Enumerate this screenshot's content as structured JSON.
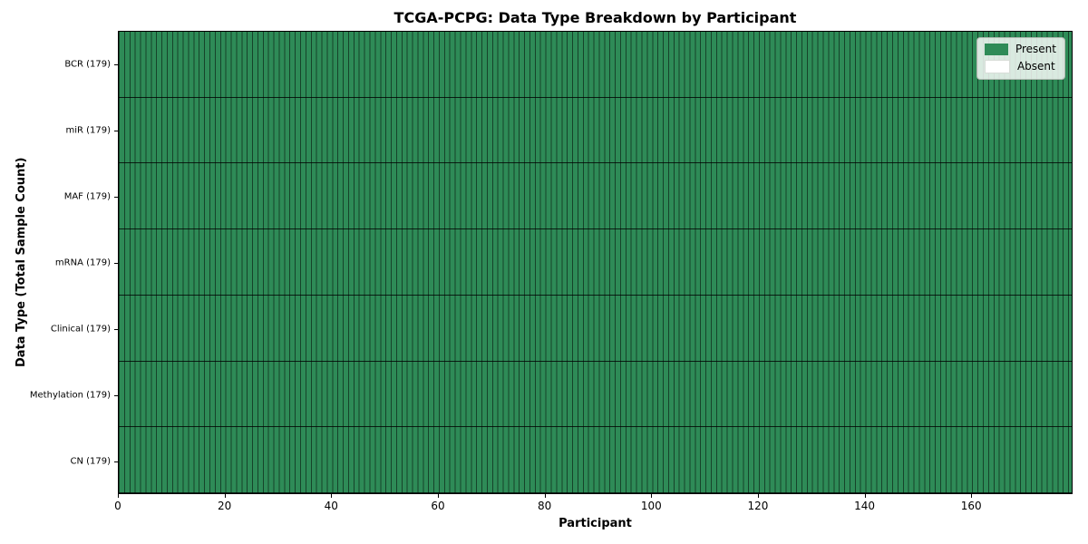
{
  "chart_data": {
    "type": "heatmap",
    "title": "TCGA-PCPG: Data Type Breakdown by Participant",
    "xlabel": "Participant",
    "ylabel": "Data Type (Total Sample Count)",
    "n_participants": 179,
    "x_range": [
      0,
      179
    ],
    "x_ticks": [
      0,
      20,
      40,
      60,
      80,
      100,
      120,
      140,
      160
    ],
    "rows": [
      {
        "label": "BCR (179)",
        "data_type": "BCR",
        "total_samples": 179,
        "present_count": 179,
        "absent_count": 0
      },
      {
        "label": "miR (179)",
        "data_type": "miR",
        "total_samples": 179,
        "present_count": 179,
        "absent_count": 0
      },
      {
        "label": "MAF (179)",
        "data_type": "MAF",
        "total_samples": 179,
        "present_count": 179,
        "absent_count": 0
      },
      {
        "label": "mRNA (179)",
        "data_type": "mRNA",
        "total_samples": 179,
        "present_count": 179,
        "absent_count": 0
      },
      {
        "label": "Clinical (179)",
        "data_type": "Clinical",
        "total_samples": 179,
        "present_count": 179,
        "absent_count": 0
      },
      {
        "label": "Methylation (179)",
        "data_type": "Methylation",
        "total_samples": 179,
        "present_count": 179,
        "absent_count": 0
      },
      {
        "label": "CN (179)",
        "data_type": "CN",
        "total_samples": 179,
        "present_count": 179,
        "absent_count": 0
      }
    ],
    "cells": "every cell Present: all 179 participants have all 7 data types",
    "legend": {
      "position": "upper right",
      "entries": [
        {
          "label": "Present",
          "color": "#2e8b57"
        },
        {
          "label": "Absent",
          "color": "#ffffff"
        }
      ]
    },
    "colors": {
      "present": "#2e8b57",
      "absent": "#ffffff",
      "cell_edge": "rgba(0,0,0,0.52)",
      "row_divider": "rgba(0,0,0,0.78)",
      "axes_edge": "#000000"
    },
    "grid": "cell edges visible (179 vertical lines, 6 horizontal row dividers)"
  }
}
